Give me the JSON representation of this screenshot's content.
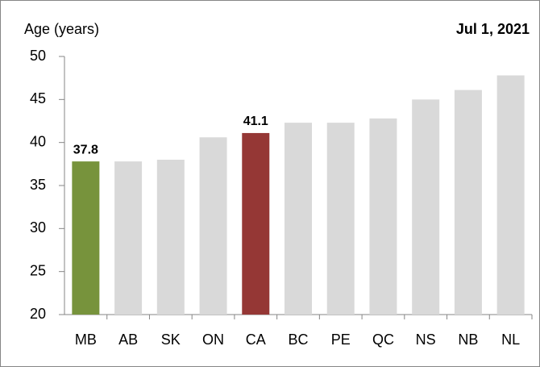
{
  "chart_data": {
    "type": "bar",
    "y_label": "Age (years)",
    "annotation": "Jul 1, 2021",
    "categories": [
      "MB",
      "AB",
      "SK",
      "ON",
      "CA",
      "BC",
      "PE",
      "QC",
      "NS",
      "NB",
      "NL"
    ],
    "values": [
      37.8,
      37.8,
      38.0,
      40.6,
      41.1,
      42.3,
      42.3,
      42.8,
      45.0,
      46.1,
      47.8
    ],
    "value_labels": [
      "37.8",
      null,
      null,
      null,
      "41.1",
      null,
      null,
      null,
      null,
      null,
      null
    ],
    "colors": [
      "#77933c",
      "#d9d9d9",
      "#d9d9d9",
      "#d9d9d9",
      "#953735",
      "#d9d9d9",
      "#d9d9d9",
      "#d9d9d9",
      "#d9d9d9",
      "#d9d9d9",
      "#d9d9d9"
    ],
    "ylim": [
      20,
      50
    ],
    "yticks": [
      20,
      25,
      30,
      35,
      40,
      45,
      50
    ],
    "grid": false
  }
}
